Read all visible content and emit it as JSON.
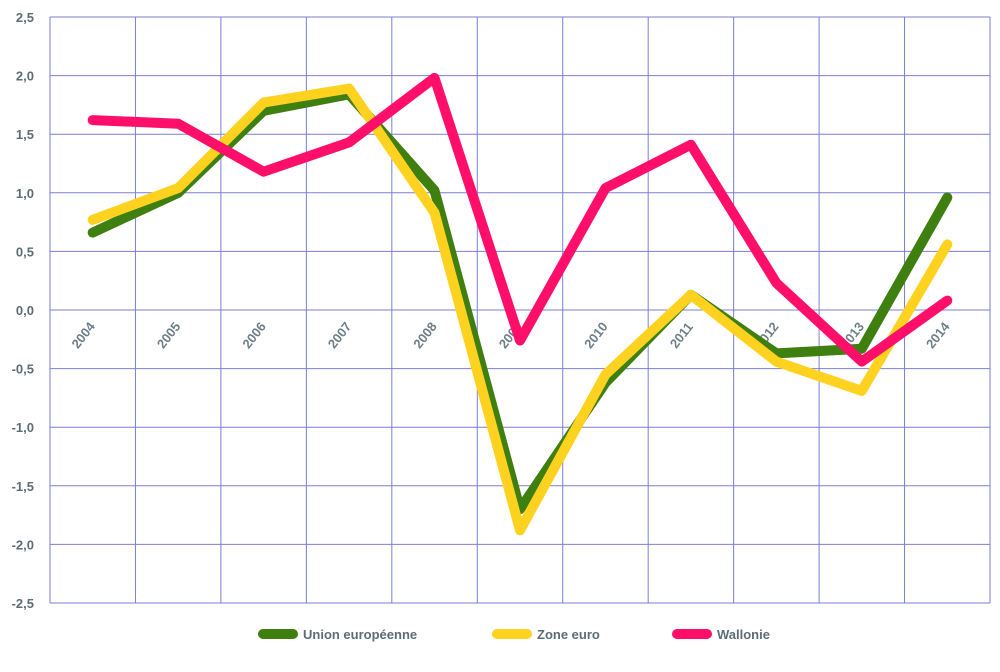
{
  "chart_data": {
    "type": "line",
    "title": "",
    "xlabel": "",
    "ylabel": "",
    "x": [
      "2004",
      "2005",
      "2006",
      "2007",
      "2008",
      "2009",
      "2010",
      "2011",
      "2012",
      "2013",
      "2014"
    ],
    "ylim": [
      -2.5,
      2.5
    ],
    "yticks": [
      2.5,
      2.0,
      1.5,
      1.0,
      0.5,
      0.0,
      -0.5,
      -1.0,
      -1.5,
      -2.0,
      -2.5
    ],
    "ytick_labels": [
      "2,5",
      "2,0",
      "1,5",
      "1,0",
      "0,5",
      "0,0",
      "-0,5",
      "-1,0",
      "-1,5",
      "-2,0",
      "-2,5"
    ],
    "grid": true,
    "legend_position": "bottom",
    "series": [
      {
        "name": "Union européenne",
        "color": "#3f7f0f",
        "values": [
          0.66,
          1.0,
          1.7,
          1.84,
          1.02,
          -1.7,
          -0.62,
          0.13,
          -0.37,
          -0.33,
          0.96
        ]
      },
      {
        "name": "Zone euro",
        "color": "#ffd21f",
        "values": [
          0.77,
          1.04,
          1.77,
          1.89,
          0.83,
          -1.88,
          -0.55,
          0.13,
          -0.44,
          -0.69,
          0.56
        ]
      },
      {
        "name": "Wallonie",
        "color": "#ff0f6a",
        "values": [
          1.62,
          1.59,
          1.18,
          1.43,
          1.98,
          -0.26,
          1.04,
          1.41,
          0.23,
          -0.44,
          0.08
        ]
      }
    ]
  }
}
